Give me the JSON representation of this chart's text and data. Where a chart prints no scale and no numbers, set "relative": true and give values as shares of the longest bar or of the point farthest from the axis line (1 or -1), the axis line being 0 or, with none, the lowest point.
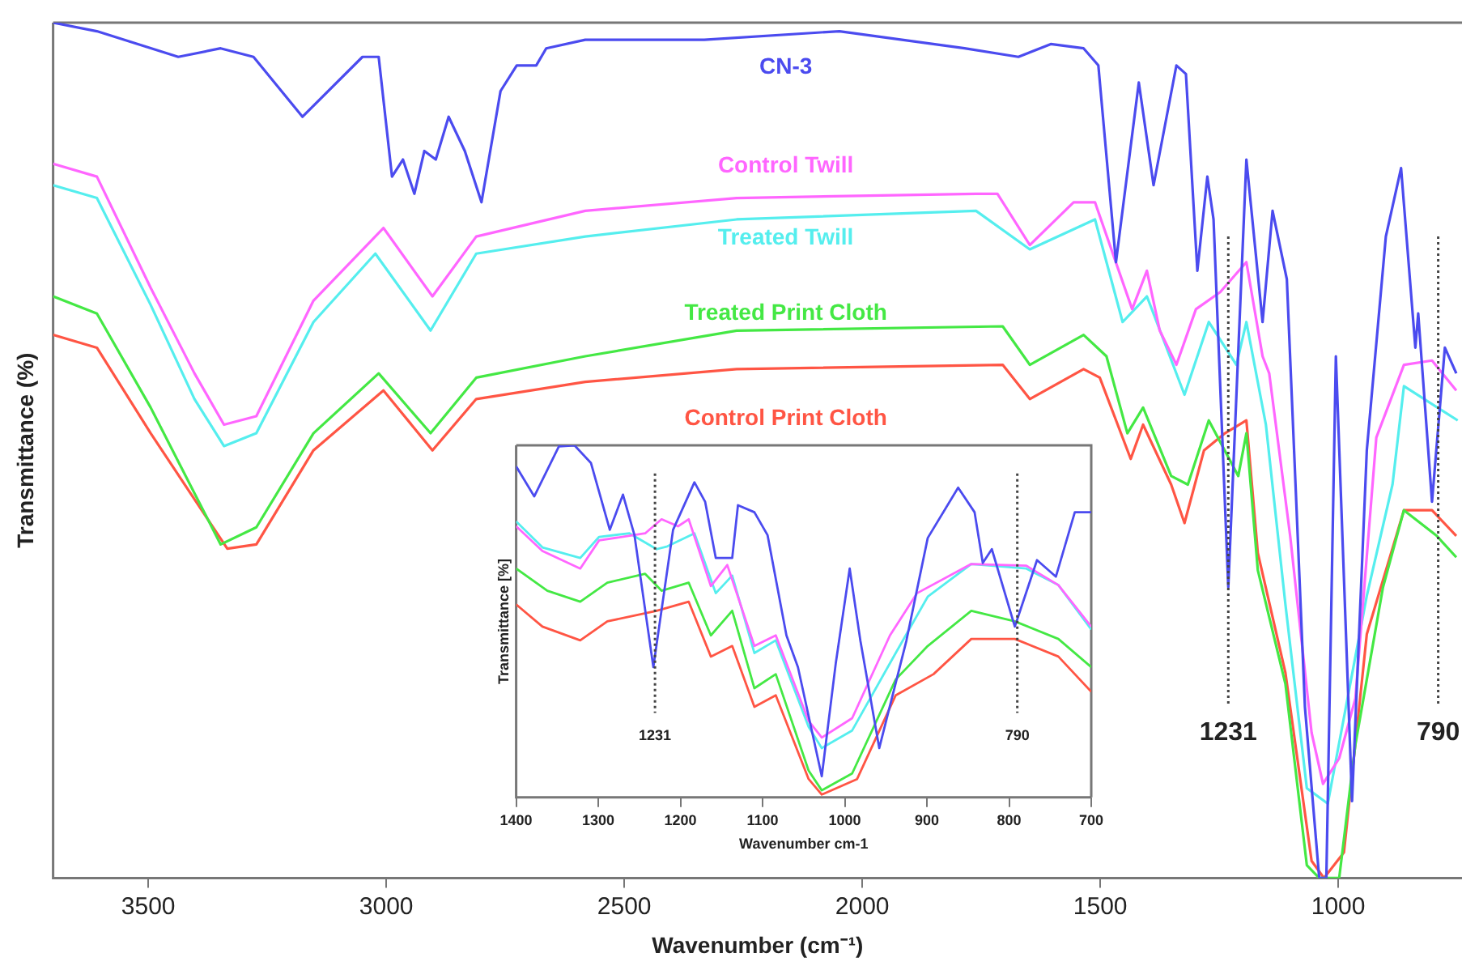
{
  "chart_data": [
    {
      "type": "line",
      "xlabel": "Wavenumber (cm⁻¹)",
      "ylabel": "Transmittance (%)",
      "xlim": [
        3700,
        740
      ],
      "xticks": [
        3500,
        3000,
        2500,
        2000,
        1500,
        1000
      ],
      "relative": true,
      "tick_labels": "x",
      "grid": false,
      "legend": false,
      "marker": "none",
      "line_style": "solid",
      "ref_lines": [
        {
          "axis": "x",
          "value": 1231,
          "label": "1231",
          "color": "#444444",
          "line_style": "dotted"
        },
        {
          "axis": "x",
          "value": 790,
          "label": "790",
          "color": "#444444",
          "line_style": "dotted"
        }
      ],
      "series": [
        {
          "name": "CN-3",
          "color": "#4b4bef",
          "x": [
            3700,
            3608,
            3437,
            3348,
            3279,
            3176,
            3050,
            3016,
            2988,
            2965,
            2941,
            2920,
            2896,
            2869,
            2835,
            2800,
            2760,
            2726,
            2685,
            2664,
            2582,
            2332,
            2048,
            1785,
            1672,
            1604,
            1535,
            1504,
            1467,
            1419,
            1388,
            1340,
            1320,
            1296,
            1275,
            1262,
            1231,
            1193,
            1159,
            1138,
            1108,
            1070,
            1040,
            1025,
            1005,
            971,
            940,
            900,
            868,
            838,
            832,
            803,
            776,
            752
          ],
          "values": [
            1,
            0.99,
            0.96,
            0.97,
            0.96,
            0.89,
            0.96,
            0.96,
            0.82,
            0.84,
            0.8,
            0.85,
            0.84,
            0.89,
            0.85,
            0.79,
            0.92,
            0.95,
            0.95,
            0.97,
            0.98,
            0.98,
            0.99,
            0.97,
            0.96,
            0.975,
            0.97,
            0.95,
            0.72,
            0.93,
            0.81,
            0.95,
            0.94,
            0.71,
            0.82,
            0.77,
            0.34,
            0.84,
            0.65,
            0.78,
            0.7,
            0.2,
            0,
            0,
            0.61,
            0.09,
            0.5,
            0.75,
            0.83,
            0.62,
            0.66,
            0.44,
            0.62,
            0.59
          ]
        },
        {
          "name": "Control Twill",
          "color": "#ff66ff",
          "x": [
            3700,
            3608,
            3495,
            3403,
            3341,
            3273,
            3153,
            3006,
            2903,
            2811,
            2582,
            2264,
            1761,
            1716,
            1648,
            1556,
            1511,
            1433,
            1402,
            1375,
            1340,
            1299,
            1248,
            1193,
            1159,
            1145,
            1101,
            1056,
            1032,
            998,
            964,
            920,
            862,
            803,
            752
          ],
          "values": [
            0.835,
            0.82,
            0.69,
            0.59,
            0.53,
            0.54,
            0.675,
            0.76,
            0.68,
            0.75,
            0.78,
            0.795,
            0.8,
            0.8,
            0.74,
            0.79,
            0.79,
            0.665,
            0.71,
            0.64,
            0.6,
            0.665,
            0.685,
            0.72,
            0.61,
            0.59,
            0.4,
            0.17,
            0.11,
            0.14,
            0.21,
            0.515,
            0.6,
            0.605,
            0.57
          ]
        },
        {
          "name": "Treated Twill",
          "color": "#55eeee",
          "x": [
            3700,
            3608,
            3495,
            3403,
            3341,
            3273,
            3153,
            3023,
            2907,
            2811,
            2582,
            2264,
            1761,
            1648,
            1511,
            1453,
            1402,
            1323,
            1272,
            1214,
            1193,
            1152,
            1111,
            1066,
            1022,
            940,
            886,
            862,
            749
          ],
          "values": [
            0.81,
            0.795,
            0.67,
            0.56,
            0.505,
            0.52,
            0.65,
            0.73,
            0.64,
            0.73,
            0.75,
            0.77,
            0.78,
            0.735,
            0.77,
            0.65,
            0.68,
            0.565,
            0.65,
            0.6,
            0.65,
            0.53,
            0.32,
            0.105,
            0.087,
            0.33,
            0.46,
            0.575,
            0.535
          ]
        },
        {
          "name": "Treated Print Cloth",
          "color": "#44e844",
          "x": [
            3700,
            3608,
            3495,
            3348,
            3273,
            3153,
            3016,
            2907,
            2811,
            2582,
            2264,
            1705,
            1648,
            1535,
            1487,
            1443,
            1410,
            1351,
            1316,
            1272,
            1210,
            1193,
            1169,
            1111,
            1066,
            1040,
            998,
            964,
            906,
            862,
            793,
            752
          ],
          "values": [
            0.68,
            0.66,
            0.55,
            0.39,
            0.41,
            0.52,
            0.59,
            0.52,
            0.585,
            0.61,
            0.64,
            0.645,
            0.6,
            0.635,
            0.61,
            0.52,
            0.55,
            0.47,
            0.46,
            0.535,
            0.47,
            0.52,
            0.36,
            0.227,
            0.015,
            0,
            0,
            0.156,
            0.34,
            0.43,
            0.4,
            0.375
          ]
        },
        {
          "name": "Control Print Cloth",
          "color": "#ff5544",
          "x": [
            3700,
            3608,
            3495,
            3334,
            3273,
            3153,
            3006,
            2903,
            2811,
            2582,
            2264,
            1705,
            1648,
            1535,
            1501,
            1436,
            1410,
            1351,
            1323,
            1282,
            1238,
            1193,
            1169,
            1111,
            1056,
            1030,
            988,
            940,
            862,
            803,
            752
          ],
          "values": [
            0.635,
            0.62,
            0.52,
            0.385,
            0.39,
            0.5,
            0.57,
            0.5,
            0.56,
            0.58,
            0.595,
            0.6,
            0.56,
            0.595,
            0.585,
            0.49,
            0.53,
            0.46,
            0.415,
            0.5,
            0.52,
            0.535,
            0.38,
            0.24,
            0.02,
            0,
            0.03,
            0.285,
            0.43,
            0.43,
            0.4
          ]
        }
      ]
    },
    {
      "type": "line",
      "xlabel": "Wavenumber cm-1",
      "ylabel": "Transmittance [%]",
      "xlim": [
        1400,
        700
      ],
      "xticks": [
        1400,
        1300,
        1200,
        1100,
        1000,
        900,
        800,
        700
      ],
      "relative": true,
      "tick_labels": "x",
      "grid": false,
      "legend": false,
      "marker": "none",
      "line_style": "solid",
      "ref_lines": [
        {
          "axis": "x",
          "value": 1231,
          "label": "1231",
          "color": "#444444",
          "line_style": "dotted"
        },
        {
          "axis": "x",
          "value": 790,
          "label": "790",
          "color": "#444444",
          "line_style": "dotted"
        }
      ],
      "series": [
        {
          "color": "#4b4bef",
          "x": [
            1400,
            1378,
            1348,
            1329,
            1309,
            1286,
            1270,
            1256,
            1233,
            1209,
            1183,
            1170,
            1157,
            1137,
            1130,
            1110,
            1094,
            1071,
            1057,
            1028,
            1011,
            994,
            981,
            958,
            925,
            899,
            862,
            842,
            832,
            821,
            793,
            766,
            743,
            720,
            700
          ],
          "values": [
            0.94,
            0.855,
            0.997,
            1,
            0.95,
            0.76,
            0.86,
            0.745,
            0.37,
            0.76,
            0.895,
            0.84,
            0.68,
            0.68,
            0.83,
            0.81,
            0.745,
            0.46,
            0.37,
            0.06,
            0.38,
            0.65,
            0.445,
            0.14,
            0.445,
            0.737,
            0.88,
            0.81,
            0.666,
            0.705,
            0.485,
            0.674,
            0.627,
            0.81,
            0.81
          ]
        },
        {
          "color": "#ff66ff",
          "x": [
            1400,
            1368,
            1322,
            1299,
            1243,
            1223,
            1203,
            1190,
            1163,
            1143,
            1110,
            1084,
            1044,
            1028,
            991,
            945,
            912,
            846,
            779,
            740,
            700
          ],
          "values": [
            0.77,
            0.7,
            0.65,
            0.73,
            0.75,
            0.79,
            0.77,
            0.79,
            0.6,
            0.66,
            0.43,
            0.46,
            0.217,
            0.17,
            0.225,
            0.46,
            0.58,
            0.663,
            0.658,
            0.603,
            0.485
          ]
        },
        {
          "color": "#55eeee",
          "x": [
            1400,
            1368,
            1322,
            1299,
            1262,
            1229,
            1216,
            1183,
            1157,
            1137,
            1110,
            1084,
            1044,
            1028,
            991,
            938,
            899,
            846,
            779,
            740,
            700
          ],
          "values": [
            0.784,
            0.71,
            0.68,
            0.74,
            0.75,
            0.705,
            0.713,
            0.75,
            0.58,
            0.63,
            0.41,
            0.446,
            0.2,
            0.14,
            0.19,
            0.41,
            0.57,
            0.663,
            0.65,
            0.603,
            0.477
          ]
        },
        {
          "color": "#44e844",
          "x": [
            1400,
            1362,
            1322,
            1289,
            1243,
            1223,
            1190,
            1163,
            1137,
            1110,
            1084,
            1044,
            1028,
            991,
            938,
            899,
            846,
            793,
            740,
            700
          ],
          "values": [
            0.65,
            0.587,
            0.556,
            0.61,
            0.635,
            0.587,
            0.61,
            0.46,
            0.53,
            0.31,
            0.35,
            0.076,
            0.02,
            0.068,
            0.335,
            0.43,
            0.53,
            0.5,
            0.45,
            0.37
          ]
        },
        {
          "color": "#ff5544",
          "x": [
            1400,
            1368,
            1322,
            1289,
            1229,
            1190,
            1163,
            1137,
            1110,
            1084,
            1044,
            1028,
            985,
            938,
            892,
            846,
            793,
            740,
            700
          ],
          "values": [
            0.548,
            0.485,
            0.446,
            0.5,
            0.53,
            0.556,
            0.4,
            0.43,
            0.257,
            0.29,
            0.052,
            0.008,
            0.052,
            0.29,
            0.35,
            0.45,
            0.45,
            0.4,
            0.3
          ]
        }
      ]
    }
  ]
}
